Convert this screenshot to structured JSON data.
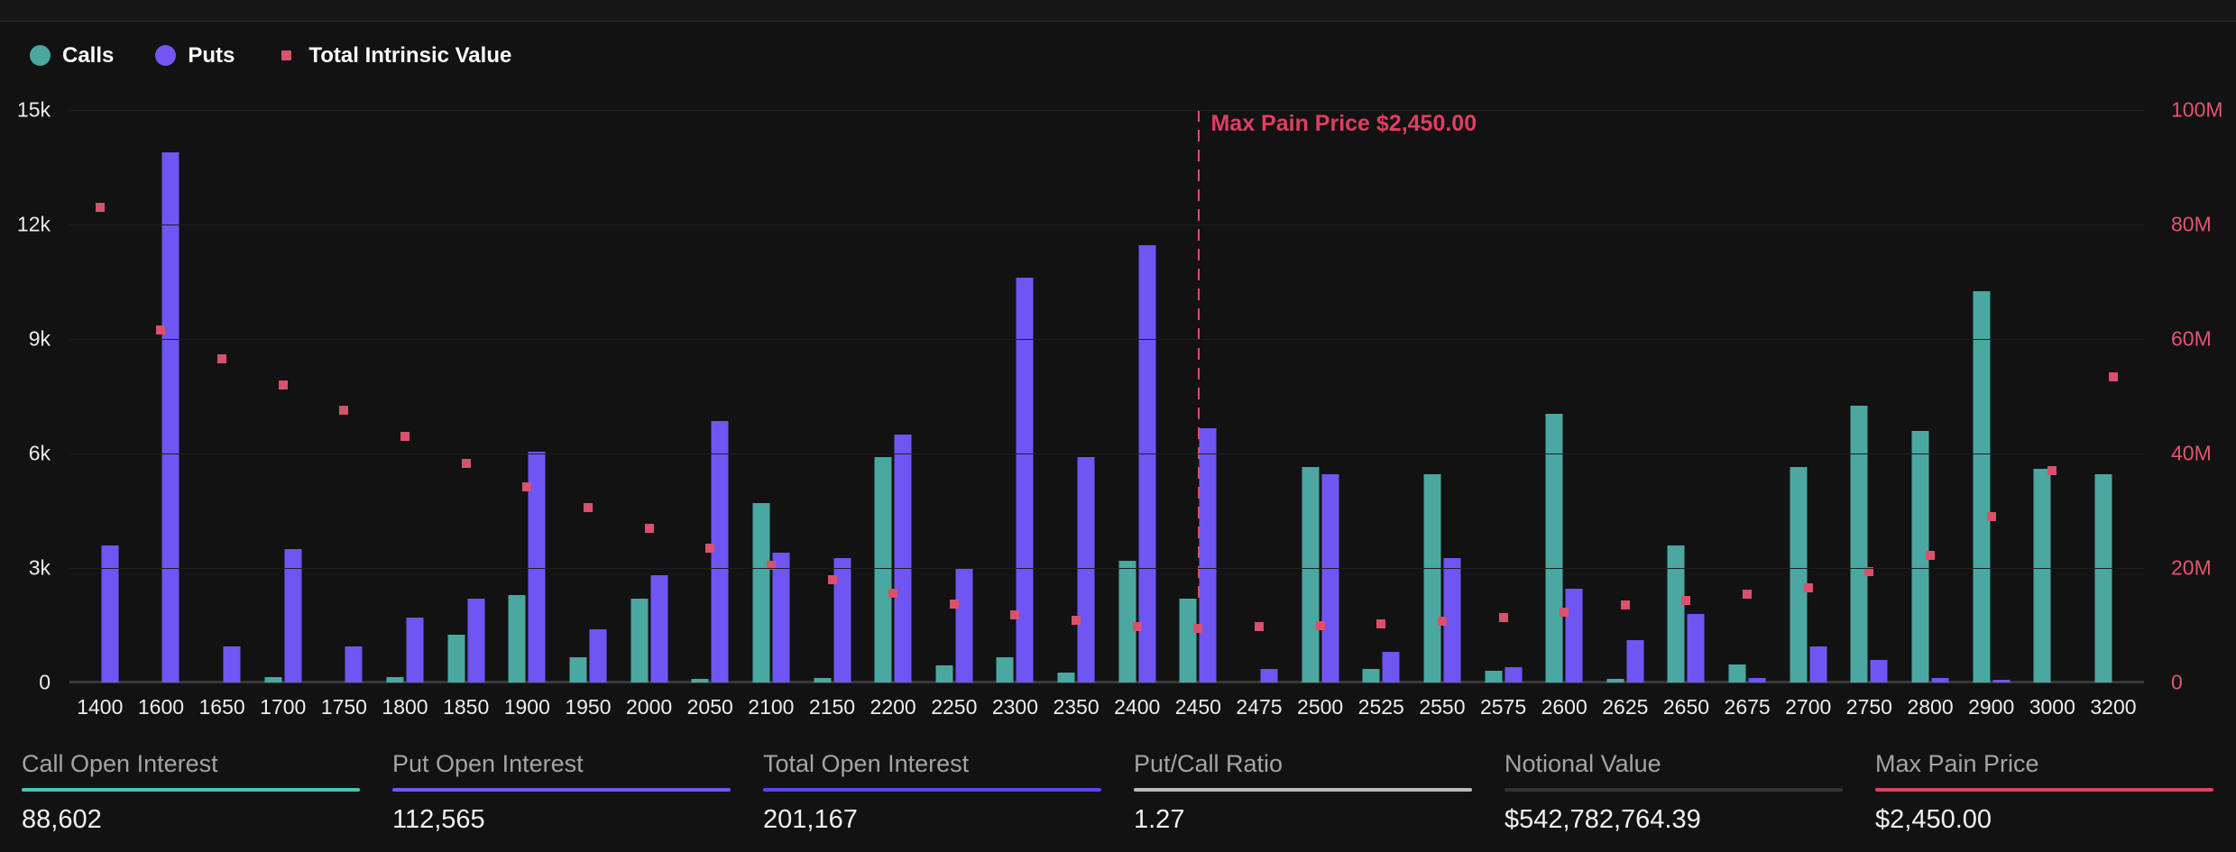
{
  "header": {
    "legend": [
      {
        "label": "Calls",
        "color": "#4aa8a0",
        "shape": "circle"
      },
      {
        "label": "Puts",
        "color": "#7357f0",
        "shape": "circle"
      },
      {
        "label": "Total Intrinsic Value",
        "color": "#d9516a",
        "shape": "square"
      }
    ]
  },
  "chart_data": {
    "type": "bar",
    "title": "",
    "categories": [
      "1400",
      "1600",
      "1650",
      "1700",
      "1750",
      "1800",
      "1850",
      "1900",
      "1950",
      "2000",
      "2050",
      "2100",
      "2150",
      "2200",
      "2250",
      "2300",
      "2350",
      "2400",
      "2450",
      "2475",
      "2500",
      "2525",
      "2550",
      "2575",
      "2600",
      "2625",
      "2650",
      "2675",
      "2700",
      "2750",
      "2800",
      "2900",
      "3000",
      "3200"
    ],
    "series": [
      {
        "name": "Calls",
        "type": "bar",
        "axis": "left",
        "color": "#4aa8a0",
        "values": [
          0,
          0,
          0,
          150,
          0,
          150,
          1250,
          2300,
          650,
          2200,
          100,
          4700,
          130,
          5900,
          450,
          650,
          250,
          3200,
          2200,
          0,
          5650,
          350,
          5450,
          300,
          7050,
          100,
          3600,
          480,
          5650,
          7250,
          6600,
          10250,
          5600,
          5450
        ]
      },
      {
        "name": "Puts",
        "type": "bar",
        "axis": "left",
        "color": "#6f55f2",
        "values": [
          3600,
          13900,
          950,
          3500,
          950,
          1700,
          2200,
          6050,
          1400,
          2800,
          6850,
          3400,
          3250,
          6500,
          3000,
          10600,
          5900,
          11450,
          6650,
          350,
          5450,
          800,
          3250,
          400,
          2450,
          1100,
          1800,
          120,
          950,
          600,
          120,
          80,
          0,
          0
        ]
      },
      {
        "name": "Total Intrinsic Value",
        "type": "scatter",
        "axis": "right",
        "color": "#d9516a",
        "values_millions": [
          83,
          61.5,
          56.5,
          52,
          47.5,
          43,
          38.3,
          34.2,
          30.5,
          27,
          23.5,
          20.4,
          18,
          15.6,
          13.7,
          11.8,
          10.8,
          9.7,
          9.4,
          9.7,
          10,
          10.3,
          10.7,
          11.3,
          12.3,
          13.5,
          14.3,
          15.5,
          16.5,
          19.3,
          22.2,
          29,
          37,
          53.4
        ]
      }
    ],
    "left_axis": {
      "ticks": [
        "0",
        "3k",
        "6k",
        "9k",
        "12k",
        "15k"
      ],
      "min": 0,
      "max": 15000
    },
    "right_axis": {
      "ticks": [
        "0",
        "20M",
        "40M",
        "60M",
        "80M",
        "100M"
      ],
      "min": 0,
      "max_millions": 100,
      "color": "#e25570"
    },
    "annotation": {
      "label": "Max Pain Price $2,450.00",
      "category": "2450"
    },
    "grid": true,
    "legend_position": "top-left"
  },
  "stats": [
    {
      "key": "call-open-interest",
      "label": "Call Open Interest",
      "value": "88,602",
      "accent": "#4cc2b2"
    },
    {
      "key": "put-open-interest",
      "label": "Put Open Interest",
      "value": "112,565",
      "accent": "#7357f5"
    },
    {
      "key": "total-open-interest",
      "label": "Total Open Interest",
      "value": "201,167",
      "accent": "#5746ee"
    },
    {
      "key": "put-call-ratio",
      "label": "Put/Call Ratio",
      "value": "1.27",
      "accent": "#b7bcc0"
    },
    {
      "key": "notional-value",
      "label": "Notional Value",
      "value": "$542,782,764.39",
      "accent": "#333336"
    },
    {
      "key": "max-pain-price",
      "label": "Max Pain Price",
      "value": "$2,450.00",
      "accent": "#e0425f"
    }
  ]
}
